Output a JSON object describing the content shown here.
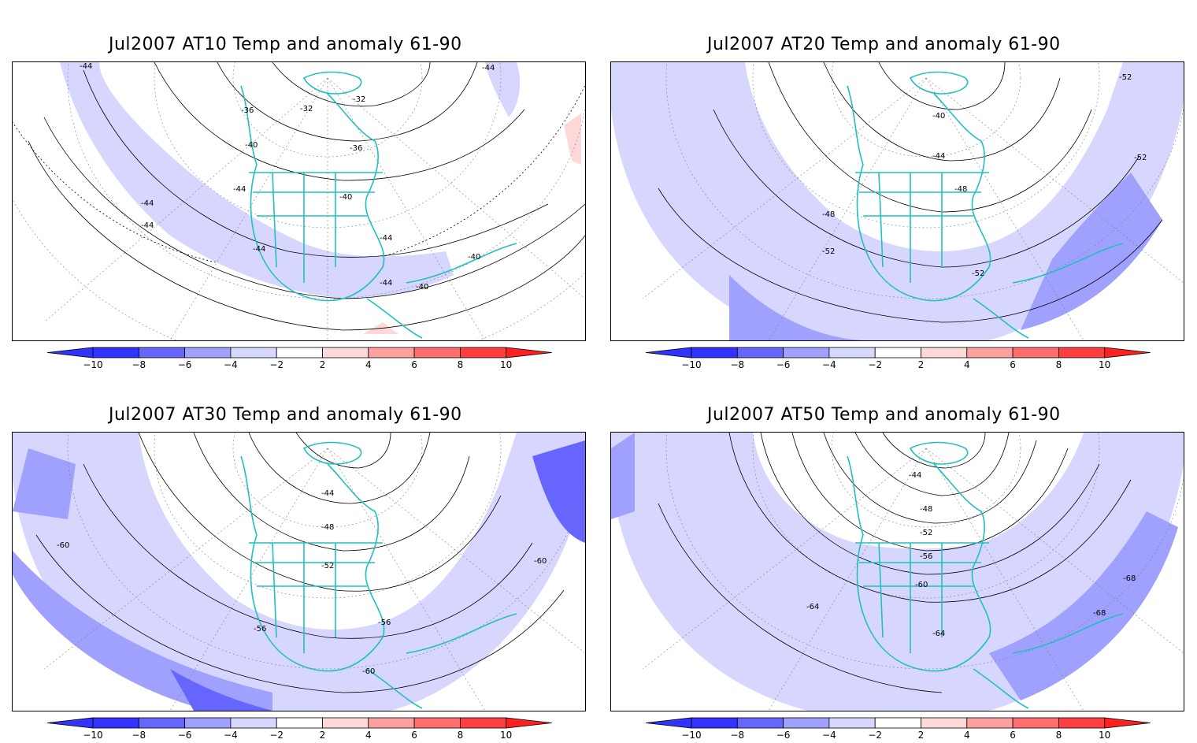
{
  "colors": {
    "anom_neg_10": "#3333ff",
    "anom_neg_8": "#6666ff",
    "anom_neg_6": "#a0a0ff",
    "anom_neg_4": "#d6d6ff",
    "anom_pos_2": "#ffd8d8",
    "anom_pos_4": "#ffa0a0",
    "anom_pos_6": "#ff6f6f",
    "anom_pos_8": "#ff3f3f",
    "anom_pos_10": "#ff2020",
    "coast": "#20c0c0",
    "contour": "#000000",
    "grid": "#808080"
  },
  "colorbar": {
    "tick_labels": [
      "−10",
      "−8",
      "−6",
      "−4",
      "−2",
      "2",
      "4",
      "6",
      "8",
      "10"
    ]
  },
  "panels": [
    {
      "title": "Jul2007 AT10 Temp and anomaly 61-90",
      "contour_labels": [
        "-44",
        "-44",
        "-36",
        "-32",
        "-32",
        "-36",
        "-40",
        "-44",
        "-40",
        "-44",
        "-44",
        "-44",
        "-44",
        "-40",
        "-44",
        "-40"
      ]
    },
    {
      "title": "Jul2007 AT20 Temp and anomaly 61-90",
      "contour_labels": [
        "-52",
        "-40",
        "-44",
        "-48",
        "-48",
        "-52",
        "-52",
        "-52"
      ]
    },
    {
      "title": "Jul2007 AT30 Temp and anomaly 61-90",
      "contour_labels": [
        "-44",
        "-48",
        "-52",
        "-60",
        "-60",
        "-56",
        "-56",
        "-60"
      ]
    },
    {
      "title": "Jul2007 AT50 Temp and anomaly 61-90",
      "contour_labels": [
        "-44",
        "-48",
        "-52",
        "-56",
        "-60",
        "-64",
        "-64",
        "-68",
        "-68"
      ]
    }
  ]
}
